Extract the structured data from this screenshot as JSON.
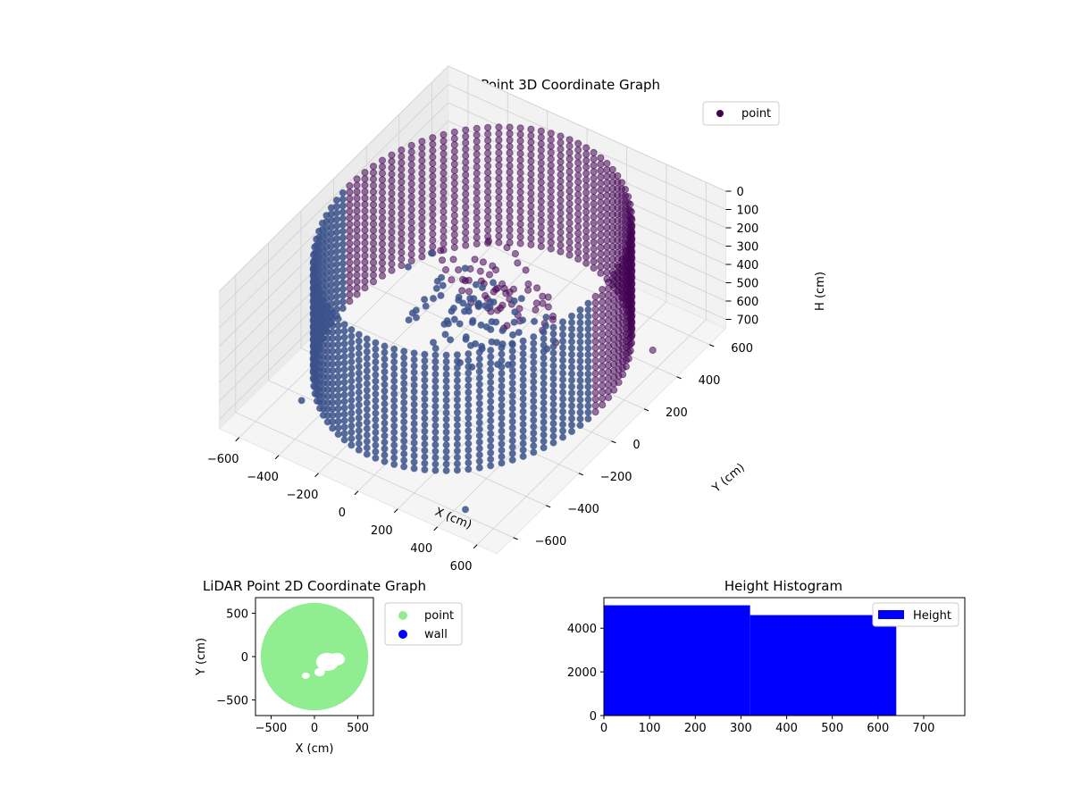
{
  "chart_data": [
    {
      "type": "scatter3d",
      "title": "LiDAR Point 3D Coordinate Graph",
      "xlabel": "X (cm)",
      "ylabel": "Y (cm)",
      "zlabel": "H (cm)",
      "xticks": [
        "−600",
        "−400",
        "−200",
        "0",
        "200",
        "400",
        "600"
      ],
      "yticks": [
        "−600",
        "−400",
        "−200",
        "0",
        "200",
        "400",
        "600"
      ],
      "zticks": [
        "0",
        "100",
        "200",
        "300",
        "400",
        "500",
        "600",
        "700"
      ],
      "xlim": [
        -700,
        700
      ],
      "ylim": [
        -700,
        700
      ],
      "zlim": [
        0,
        750
      ],
      "z_inverted": true,
      "grid": true,
      "legend": {
        "position": "top-right",
        "entries": [
          {
            "label": "point",
            "color": "#440154"
          }
        ]
      },
      "colors": {
        "near": "#440154",
        "far": "#3b528b"
      },
      "description_of_data": {
        "wall_ring": {
          "center": [
            0,
            0
          ],
          "radius": 620,
          "height_range": [
            0,
            640
          ]
        },
        "center_object": {
          "center": [
            80,
            -20
          ],
          "height_range": [
            150,
            450
          ]
        },
        "outliers": [
          [
            -450,
            -500,
            650
          ],
          [
            500,
            -650,
            650
          ],
          [
            620,
            350,
            600
          ]
        ]
      }
    },
    {
      "type": "scatter",
      "title": "LiDAR Point 2D Coordinate Graph",
      "xlabel": "X (cm)",
      "ylabel": "Y (cm)",
      "xticks": [
        "−500",
        "0",
        "500"
      ],
      "yticks": [
        "500",
        "0",
        "−500"
      ],
      "xlim": [
        -680,
        680
      ],
      "ylim": [
        -680,
        680
      ],
      "series": [
        {
          "name": "point",
          "color": "#90ee90",
          "shape": "disc",
          "radius": 620
        },
        {
          "name": "wall",
          "color": "#0000ff",
          "points": []
        }
      ],
      "legend": {
        "position": "outside-right"
      }
    },
    {
      "type": "bar",
      "title": "Height Histogram",
      "xticks": [
        "0",
        "100",
        "200",
        "300",
        "400",
        "500",
        "600",
        "700"
      ],
      "yticks": [
        "0",
        "2000",
        "4000"
      ],
      "xlim": [
        0,
        790
      ],
      "ylim": [
        0,
        5400
      ],
      "bins": [
        {
          "from": 0,
          "to": 320,
          "count": 5050
        },
        {
          "from": 320,
          "to": 640,
          "count": 4600
        }
      ],
      "series": [
        {
          "name": "Height",
          "color": "#0000ff"
        }
      ],
      "legend": {
        "position": "top-right"
      }
    }
  ]
}
